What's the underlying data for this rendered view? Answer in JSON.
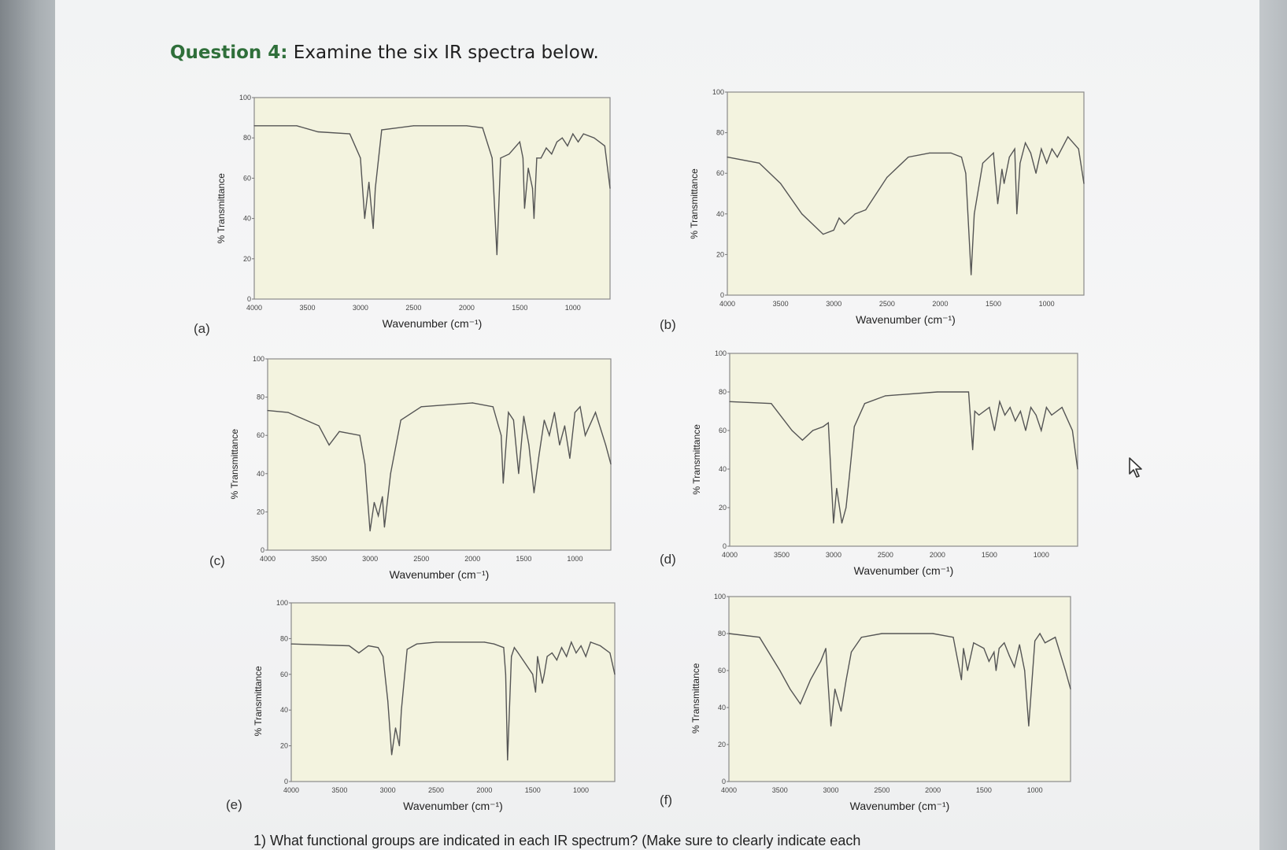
{
  "question": {
    "label": "Question 4:",
    "text": "Examine the six IR spectra below."
  },
  "axes": {
    "xlabel": "Wavenumber (cm⁻¹)",
    "ylabel": "% Transmittance",
    "xticks": [
      "4000",
      "3500",
      "3000",
      "2500",
      "2000",
      "1500",
      "1000"
    ],
    "yticks": [
      "0",
      "20",
      "40",
      "60",
      "80",
      "100"
    ]
  },
  "chart_data": [
    {
      "panel": "(a)",
      "type": "line",
      "xlim": [
        4000,
        650
      ],
      "ylim": [
        0,
        100
      ],
      "x": [
        4000,
        3600,
        3400,
        3100,
        3000,
        2960,
        2920,
        2880,
        2860,
        2800,
        2500,
        2000,
        1850,
        1760,
        1715,
        1680,
        1600,
        1500,
        1470,
        1455,
        1420,
        1380,
        1366,
        1340,
        1300,
        1250,
        1200,
        1150,
        1100,
        1050,
        1000,
        950,
        900,
        800,
        700,
        650
      ],
      "y": [
        86,
        86,
        83,
        82,
        70,
        40,
        58,
        35,
        55,
        84,
        86,
        86,
        85,
        70,
        22,
        70,
        72,
        78,
        70,
        45,
        65,
        55,
        40,
        70,
        70,
        75,
        72,
        78,
        80,
        76,
        82,
        78,
        82,
        80,
        76,
        55
      ]
    },
    {
      "panel": "(b)",
      "type": "line",
      "xlim": [
        4000,
        650
      ],
      "ylim": [
        0,
        100
      ],
      "x": [
        4000,
        3700,
        3500,
        3300,
        3100,
        3000,
        2950,
        2900,
        2800,
        2700,
        2600,
        2500,
        2300,
        2100,
        1900,
        1800,
        1760,
        1710,
        1680,
        1600,
        1500,
        1460,
        1420,
        1400,
        1350,
        1300,
        1280,
        1250,
        1200,
        1150,
        1100,
        1050,
        1000,
        950,
        900,
        800,
        700,
        650
      ],
      "y": [
        68,
        65,
        55,
        40,
        30,
        32,
        38,
        35,
        40,
        42,
        50,
        58,
        68,
        70,
        70,
        68,
        60,
        10,
        40,
        65,
        70,
        45,
        62,
        55,
        68,
        72,
        40,
        65,
        75,
        70,
        60,
        72,
        65,
        72,
        68,
        78,
        72,
        55
      ]
    },
    {
      "panel": "(c)",
      "type": "line",
      "xlim": [
        4000,
        650
      ],
      "ylim": [
        0,
        100
      ],
      "x": [
        4000,
        3800,
        3500,
        3400,
        3300,
        3100,
        3050,
        3000,
        2960,
        2920,
        2880,
        2860,
        2800,
        2700,
        2500,
        2000,
        1800,
        1720,
        1700,
        1650,
        1600,
        1550,
        1500,
        1450,
        1400,
        1350,
        1300,
        1250,
        1200,
        1150,
        1100,
        1050,
        1000,
        950,
        900,
        800,
        700,
        650
      ],
      "y": [
        73,
        72,
        65,
        55,
        62,
        60,
        45,
        10,
        25,
        18,
        28,
        12,
        40,
        68,
        75,
        77,
        75,
        60,
        35,
        72,
        68,
        40,
        70,
        55,
        30,
        50,
        68,
        60,
        72,
        55,
        65,
        48,
        72,
        75,
        60,
        72,
        55,
        45
      ]
    },
    {
      "panel": "(d)",
      "type": "line",
      "xlim": [
        4000,
        650
      ],
      "ylim": [
        0,
        100
      ],
      "x": [
        4000,
        3600,
        3400,
        3300,
        3200,
        3100,
        3050,
        3000,
        2970,
        2920,
        2880,
        2850,
        2800,
        2700,
        2500,
        2000,
        1700,
        1660,
        1640,
        1600,
        1500,
        1450,
        1400,
        1350,
        1300,
        1250,
        1200,
        1150,
        1100,
        1050,
        1000,
        950,
        900,
        800,
        700,
        650
      ],
      "y": [
        75,
        74,
        60,
        55,
        60,
        62,
        64,
        12,
        30,
        12,
        20,
        35,
        62,
        74,
        78,
        80,
        80,
        50,
        70,
        68,
        72,
        60,
        75,
        68,
        72,
        65,
        70,
        60,
        72,
        68,
        60,
        72,
        68,
        72,
        60,
        40
      ]
    },
    {
      "panel": "(e)",
      "type": "line",
      "xlim": [
        4000,
        650
      ],
      "ylim": [
        0,
        100
      ],
      "x": [
        4000,
        3400,
        3300,
        3200,
        3100,
        3050,
        3000,
        2960,
        2920,
        2880,
        2860,
        2800,
        2700,
        2500,
        2000,
        1900,
        1800,
        1780,
        1760,
        1720,
        1690,
        1650,
        1600,
        1500,
        1470,
        1450,
        1400,
        1380,
        1350,
        1300,
        1250,
        1200,
        1150,
        1100,
        1050,
        1000,
        950,
        900,
        800,
        700,
        650
      ],
      "y": [
        77,
        76,
        72,
        76,
        75,
        70,
        45,
        15,
        30,
        20,
        40,
        74,
        77,
        78,
        78,
        77,
        75,
        60,
        12,
        70,
        75,
        72,
        68,
        60,
        50,
        70,
        55,
        60,
        70,
        72,
        68,
        75,
        70,
        78,
        72,
        76,
        70,
        78,
        76,
        72,
        60
      ]
    },
    {
      "panel": "(f)",
      "type": "line",
      "xlim": [
        4000,
        650
      ],
      "ylim": [
        0,
        100
      ],
      "x": [
        4000,
        3700,
        3500,
        3400,
        3300,
        3200,
        3100,
        3050,
        3000,
        2960,
        2900,
        2850,
        2800,
        2700,
        2500,
        2000,
        1800,
        1720,
        1700,
        1660,
        1600,
        1500,
        1450,
        1400,
        1380,
        1350,
        1300,
        1250,
        1200,
        1150,
        1100,
        1060,
        1000,
        950,
        900,
        800,
        700,
        650
      ],
      "y": [
        80,
        78,
        60,
        50,
        42,
        55,
        65,
        72,
        30,
        50,
        38,
        55,
        70,
        78,
        80,
        80,
        78,
        55,
        72,
        60,
        75,
        72,
        65,
        70,
        60,
        72,
        75,
        68,
        62,
        74,
        60,
        30,
        76,
        80,
        75,
        78,
        60,
        50
      ]
    }
  ],
  "footer": {
    "text": "1)  What functional groups are indicated in each IR spectrum? (Make sure to clearly indicate each"
  }
}
